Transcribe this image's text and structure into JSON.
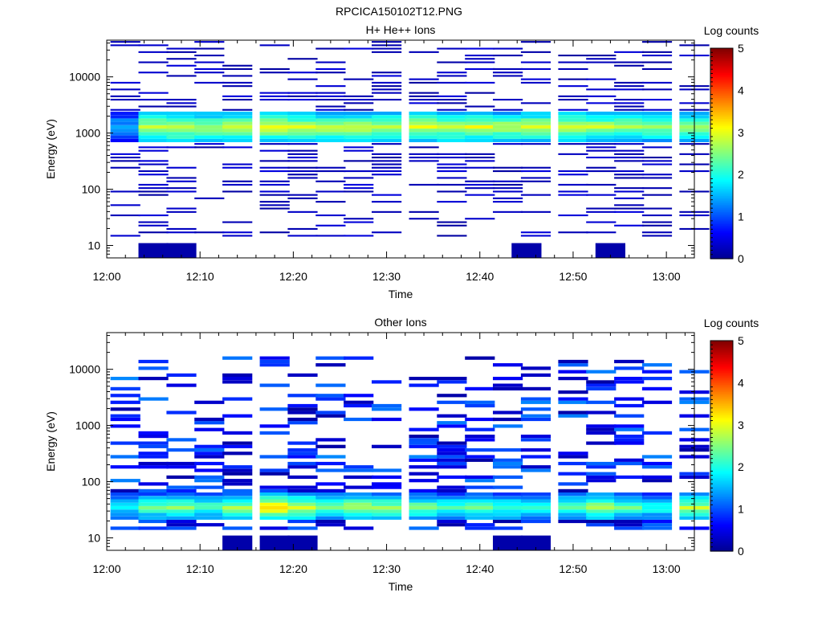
{
  "figure_title": "RPCICA150102T12.PNG",
  "chart_data": [
    {
      "type": "heatmap",
      "title": "H+ He++ Ions",
      "xlabel": "Time",
      "ylabel": "Energy (eV)",
      "x_ticks": [
        "12:00",
        "12:10",
        "12:20",
        "12:30",
        "12:40",
        "12:50",
        "13:00"
      ],
      "x_range": [
        "12:00",
        "13:03"
      ],
      "y_scale": "log",
      "y_range": [
        6,
        45000
      ],
      "y_ticks": [
        "10",
        "100",
        "1000",
        "10000"
      ],
      "colorbar": {
        "label": "Log counts",
        "min": 0,
        "max": 5,
        "ticks": [
          "0",
          "1",
          "2",
          "3",
          "4",
          "5"
        ]
      },
      "sweep_times": [
        "12:02",
        "12:05",
        "12:08",
        "12:11",
        "12:14",
        "12:18",
        "12:21",
        "12:24",
        "12:27",
        "12:30",
        "12:34",
        "12:37",
        "12:40",
        "12:43",
        "12:46",
        "12:50",
        "12:53",
        "12:56",
        "12:59",
        "13:03"
      ],
      "peak_log_counts_by_sweep": [
        1.5,
        2.9,
        3.0,
        2.7,
        2.8,
        3.0,
        2.9,
        2.8,
        2.9,
        2.9,
        3.0,
        2.9,
        3.0,
        2.8,
        2.9,
        2.9,
        2.8,
        2.7,
        2.6,
        2.6
      ],
      "main_band_eV": [
        650,
        2500
      ]
    },
    {
      "type": "heatmap",
      "title": "Other Ions",
      "xlabel": "Time",
      "ylabel": "Energy (eV)",
      "x_ticks": [
        "12:00",
        "12:10",
        "12:20",
        "12:30",
        "12:40",
        "12:50",
        "13:00"
      ],
      "x_range": [
        "12:00",
        "13:03"
      ],
      "y_scale": "log",
      "y_range": [
        6,
        45000
      ],
      "y_ticks": [
        "10",
        "100",
        "1000",
        "10000"
      ],
      "colorbar": {
        "label": "Log counts",
        "min": 0,
        "max": 5,
        "ticks": [
          "0",
          "1",
          "2",
          "3",
          "4",
          "5"
        ]
      },
      "sweep_times": [
        "12:02",
        "12:05",
        "12:08",
        "12:11",
        "12:14",
        "12:18",
        "12:21",
        "12:24",
        "12:27",
        "12:30",
        "12:34",
        "12:37",
        "12:40",
        "12:43",
        "12:46",
        "12:50",
        "12:53",
        "12:56",
        "12:59",
        "13:03"
      ],
      "peak_log_counts_by_sweep": [
        1.8,
        2.4,
        2.6,
        2.3,
        2.7,
        3.4,
        3.0,
        2.5,
        2.8,
        2.6,
        2.5,
        2.2,
        2.5,
        2.3,
        2.1,
        2.3,
        2.8,
        2.4,
        2.1,
        2.8
      ],
      "main_band_eV": [
        20,
        60
      ]
    }
  ],
  "colormap": [
    "#00008f",
    "#0000ff",
    "#0080ff",
    "#00ffff",
    "#80ff80",
    "#ffff00",
    "#ff8000",
    "#ff0000",
    "#800000"
  ]
}
